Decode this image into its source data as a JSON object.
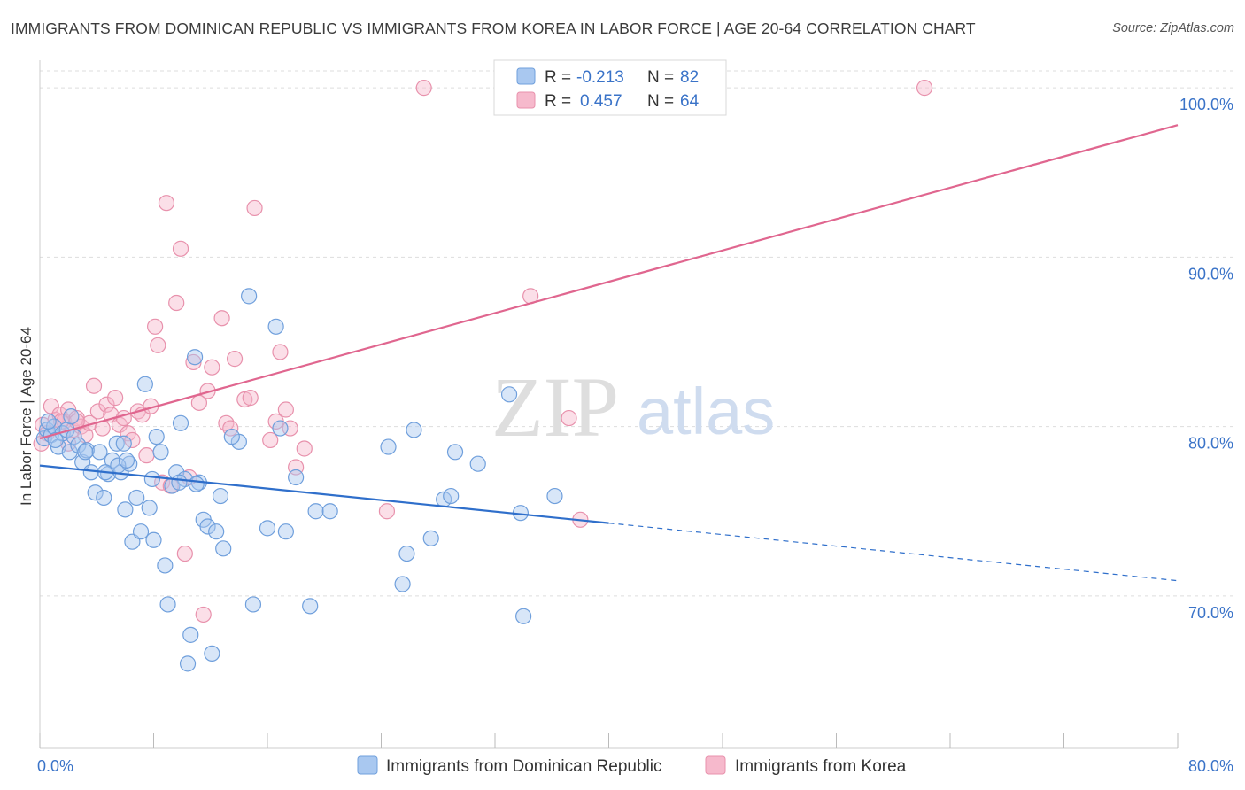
{
  "title": "IMMIGRANTS FROM DOMINICAN REPUBLIC VS IMMIGRANTS FROM KOREA IN LABOR FORCE | AGE 20-64 CORRELATION CHART",
  "source": "Source: ZipAtlas.com",
  "watermark": {
    "zip": "ZIP",
    "atlas": "atlas"
  },
  "colors": {
    "blue_fill": "#a9c8f0",
    "blue_stroke": "#6f9fdc",
    "blue_line": "#2f6fcb",
    "pink_fill": "#f6b9cc",
    "pink_stroke": "#e891ac",
    "pink_line": "#e0668f",
    "axis_label": "#3a73c8",
    "grid": "#dddddd"
  },
  "legend": {
    "r_label": "R =",
    "n_label": "N =",
    "blue": {
      "r": "-0.213",
      "n": "82"
    },
    "pink": {
      "r": "0.457",
      "n": "64"
    }
  },
  "chart_data": {
    "type": "scatter",
    "title": "IMMIGRANTS FROM DOMINICAN REPUBLIC VS IMMIGRANTS FROM KOREA IN LABOR FORCE | AGE 20-64 CORRELATION CHART",
    "xlabel": "",
    "ylabel": "In Labor Force | Age 20-64",
    "xlim": [
      0,
      80
    ],
    "ylim": [
      61,
      101
    ],
    "x_tick_labels": [
      "0.0%",
      "80.0%"
    ],
    "y_ticks": [
      70,
      80,
      90,
      100
    ],
    "y_tick_labels": [
      "70.0%",
      "80.0%",
      "90.0%",
      "100.0%"
    ],
    "grid": true,
    "legend_position": "top-center",
    "series": [
      {
        "name": "Immigrants from Dominican Republic",
        "r": -0.213,
        "n": 82,
        "trend": {
          "x": [
            0,
            40,
            80
          ],
          "y": [
            77.7,
            74.3,
            70.9
          ],
          "solid_until_x": 40
        },
        "points": [
          [
            0.3,
            79.3
          ],
          [
            0.5,
            79.8
          ],
          [
            0.8,
            79.5
          ],
          [
            1.0,
            80.0
          ],
          [
            1.3,
            78.8
          ],
          [
            1.6,
            79.6
          ],
          [
            1.9,
            79.8
          ],
          [
            2.1,
            78.5
          ],
          [
            2.4,
            79.4
          ],
          [
            2.7,
            78.9
          ],
          [
            3.0,
            77.9
          ],
          [
            3.3,
            78.6
          ],
          [
            3.6,
            77.3
          ],
          [
            3.9,
            76.1
          ],
          [
            4.2,
            78.5
          ],
          [
            4.5,
            75.8
          ],
          [
            4.8,
            77.2
          ],
          [
            5.1,
            78.0
          ],
          [
            5.4,
            79.0
          ],
          [
            5.7,
            77.3
          ],
          [
            6.0,
            75.1
          ],
          [
            6.3,
            77.8
          ],
          [
            6.5,
            73.2
          ],
          [
            6.8,
            75.8
          ],
          [
            7.1,
            73.8
          ],
          [
            7.4,
            82.5
          ],
          [
            7.7,
            75.2
          ],
          [
            8.0,
            73.3
          ],
          [
            8.2,
            79.4
          ],
          [
            8.5,
            78.5
          ],
          [
            8.8,
            71.8
          ],
          [
            9.0,
            69.5
          ],
          [
            9.3,
            76.5
          ],
          [
            9.6,
            77.3
          ],
          [
            9.9,
            80.2
          ],
          [
            10.2,
            76.9
          ],
          [
            10.4,
            66.0
          ],
          [
            10.6,
            67.7
          ],
          [
            10.9,
            84.1
          ],
          [
            11.2,
            76.7
          ],
          [
            11.5,
            74.5
          ],
          [
            11.8,
            74.1
          ],
          [
            12.1,
            66.6
          ],
          [
            12.4,
            73.8
          ],
          [
            12.7,
            75.9
          ],
          [
            12.9,
            72.8
          ],
          [
            14.0,
            79.1
          ],
          [
            14.7,
            87.7
          ],
          [
            15.0,
            69.5
          ],
          [
            16.0,
            74.0
          ],
          [
            16.6,
            85.9
          ],
          [
            16.9,
            79.9
          ],
          [
            17.3,
            73.8
          ],
          [
            18.0,
            77.0
          ],
          [
            19.0,
            69.4
          ],
          [
            19.4,
            75.0
          ],
          [
            20.4,
            75.0
          ],
          [
            24.5,
            78.8
          ],
          [
            25.5,
            70.7
          ],
          [
            25.8,
            72.5
          ],
          [
            26.3,
            79.8
          ],
          [
            27.5,
            73.4
          ],
          [
            28.4,
            75.7
          ],
          [
            28.9,
            75.9
          ],
          [
            29.2,
            78.5
          ],
          [
            30.8,
            77.8
          ],
          [
            33.0,
            81.9
          ],
          [
            33.8,
            74.9
          ],
          [
            34.0,
            68.8
          ],
          [
            36.2,
            75.9
          ],
          [
            3.2,
            78.5
          ],
          [
            2.2,
            80.6
          ],
          [
            1.1,
            79.2
          ],
          [
            0.6,
            80.3
          ],
          [
            4.6,
            77.3
          ],
          [
            5.5,
            77.7
          ],
          [
            7.9,
            76.9
          ],
          [
            6.1,
            78.0
          ],
          [
            9.8,
            76.7
          ],
          [
            13.5,
            79.4
          ],
          [
            11.0,
            76.6
          ],
          [
            5.9,
            79.0
          ]
        ]
      },
      {
        "name": "Immigrants from Korea",
        "r": 0.457,
        "n": 64,
        "trend": {
          "x": [
            0,
            80
          ],
          "y": [
            79.3,
            97.8
          ]
        },
        "points": [
          [
            0.2,
            80.1
          ],
          [
            0.5,
            79.6
          ],
          [
            0.8,
            81.2
          ],
          [
            1.1,
            80.4
          ],
          [
            1.4,
            80.7
          ],
          [
            1.7,
            80.3
          ],
          [
            2.0,
            81.0
          ],
          [
            2.3,
            79.8
          ],
          [
            2.6,
            80.5
          ],
          [
            2.9,
            80.0
          ],
          [
            3.2,
            79.5
          ],
          [
            3.5,
            80.2
          ],
          [
            3.8,
            82.4
          ],
          [
            4.1,
            80.9
          ],
          [
            4.4,
            79.9
          ],
          [
            4.7,
            81.3
          ],
          [
            5.0,
            80.7
          ],
          [
            5.3,
            81.7
          ],
          [
            5.6,
            80.1
          ],
          [
            5.9,
            80.5
          ],
          [
            6.2,
            79.6
          ],
          [
            6.5,
            79.2
          ],
          [
            6.9,
            80.9
          ],
          [
            7.2,
            80.7
          ],
          [
            7.5,
            78.3
          ],
          [
            7.8,
            81.2
          ],
          [
            8.1,
            85.9
          ],
          [
            8.3,
            84.8
          ],
          [
            8.6,
            76.7
          ],
          [
            8.9,
            93.2
          ],
          [
            9.2,
            76.5
          ],
          [
            9.6,
            87.3
          ],
          [
            9.9,
            90.5
          ],
          [
            10.2,
            72.5
          ],
          [
            10.5,
            77.0
          ],
          [
            10.8,
            83.8
          ],
          [
            11.2,
            81.4
          ],
          [
            11.5,
            68.9
          ],
          [
            11.8,
            82.1
          ],
          [
            12.1,
            83.5
          ],
          [
            12.8,
            86.4
          ],
          [
            13.1,
            80.2
          ],
          [
            13.4,
            79.9
          ],
          [
            13.7,
            84.0
          ],
          [
            14.4,
            81.6
          ],
          [
            14.8,
            81.7
          ],
          [
            15.1,
            92.9
          ],
          [
            16.2,
            79.2
          ],
          [
            16.6,
            80.3
          ],
          [
            16.9,
            84.4
          ],
          [
            17.3,
            81.0
          ],
          [
            17.6,
            79.9
          ],
          [
            18.0,
            77.6
          ],
          [
            18.6,
            78.7
          ],
          [
            24.4,
            75.0
          ],
          [
            27.0,
            100.0
          ],
          [
            34.5,
            87.7
          ],
          [
            37.2,
            80.5
          ],
          [
            38.0,
            74.5
          ],
          [
            62.2,
            100.0
          ],
          [
            0.1,
            79.0
          ],
          [
            1.5,
            80.3
          ],
          [
            2.6,
            80.3
          ],
          [
            2.0,
            79.0
          ]
        ]
      }
    ]
  }
}
